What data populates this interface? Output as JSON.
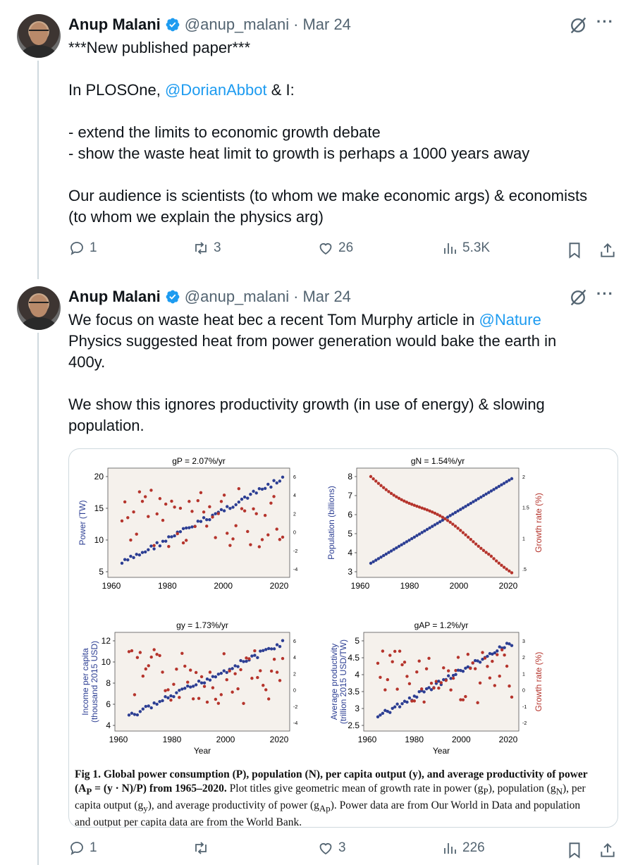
{
  "tweets": [
    {
      "name": "Anup Malani",
      "handle": "@anup_malani",
      "dot": "·",
      "date": "Mar 24",
      "lines": [
        "***New published paper***",
        "",
        "In PLOSOne, ",
        "",
        "- extend the limits to economic growth debate",
        "- show the waste heat limit to growth is perhaps a 1000 years away",
        "",
        "Our audience is scientists (to whom we make economic args) & economists",
        "(to whom we explain the physics arg)"
      ],
      "mention": "@DorianAbbot",
      "mention_suffix": " & I:",
      "replies": "1",
      "reposts": "3",
      "likes": "26",
      "views": "5.3K"
    },
    {
      "name": "Anup Malani",
      "handle": "@anup_malani",
      "dot": "·",
      "date": "Mar 24",
      "line1_prefix": "We focus on waste heat bec a recent Tom Murphy article in ",
      "mention": "@Nature",
      "line2": "Physics suggested heat from power generation would bake the earth in",
      "line3": "400y.",
      "line5": "We show this ignores productivity growth (in use of energy) & slowing",
      "line6": "population.",
      "replies": "1",
      "reposts": "",
      "likes": "3",
      "views": "226"
    }
  ],
  "figure": {
    "caption_bold": "Fig 1. Global power consumption (P), population (N), per capita output (y), and average productivity of power (A",
    "caption_line1": "Fig 1. Global power consumption (P), population (N), per capita output (y), and average productivity of power",
    "caption_line2a": "(A",
    "caption_line2b": "P",
    "caption_line2c": " = (y · N)/P) from 1965–2020.",
    "caption_line2d": " Plot titles give geometric mean of growth rate in power (g",
    "caption_line2e": "P",
    "caption_line2f": "), population (g",
    "caption_line2g": "N",
    "caption_line2h": "), per",
    "caption_line3a": "capita output (g",
    "caption_line3b": "y",
    "caption_line3c": "), and average productivity of power (g",
    "caption_line3d": "Ap",
    "caption_line3e": "). Power data are from Our World in Data and population",
    "caption_line4": "and output per capita data are from the World Bank.",
    "panels": [
      {
        "title": "gP = 2.07%/yr",
        "ylabel": "Power (TW)",
        "xlabel": "",
        "yticks": [
          "5",
          "10",
          "15",
          "20"
        ],
        "xticks": [
          "1960",
          "1980",
          "2000",
          "2020"
        ],
        "rticks": [
          "-4",
          "-2",
          "0",
          "2",
          "4",
          "6"
        ]
      },
      {
        "title": "gN = 1.54%/yr",
        "ylabel": "Population (billions)",
        "xlabel": "",
        "yticks": [
          "3",
          "4",
          "5",
          "6",
          "7",
          "8"
        ],
        "xticks": [
          "1960",
          "1980",
          "2000",
          "2020"
        ],
        "rticks": [
          ".5",
          "1",
          "1.5",
          "2"
        ],
        "rlabel": "Growth rate (%)"
      },
      {
        "title": "gy = 1.73%/yr",
        "ylabel": "Income per capita",
        "ylabel2": "(thousand 2015 USD)",
        "xlabel": "Year",
        "yticks": [
          "4",
          "6",
          "8",
          "10",
          "12"
        ],
        "xticks": [
          "1960",
          "1980",
          "2000",
          "2020"
        ],
        "rticks": [
          "-4",
          "-2",
          "0",
          "2",
          "4",
          "6"
        ]
      },
      {
        "title": "gAP = 1.2%/yr",
        "ylabel": "Average productivity",
        "ylabel2": "(trillion 2015 USD/TW)",
        "xlabel": "Year",
        "yticks": [
          "2.5",
          "3",
          "3.5",
          "4",
          "4.5",
          "5"
        ],
        "xticks": [
          "1960",
          "1980",
          "2000",
          "2020"
        ],
        "rticks": [
          "-2",
          "-1",
          "0",
          "1",
          "2",
          "3"
        ],
        "rlabel": "Growth rate (%)"
      }
    ]
  },
  "colors": {
    "accent": "#1d9bf0",
    "muted": "#536471",
    "level": "#2c3e93",
    "growth": "#b5342c"
  }
}
